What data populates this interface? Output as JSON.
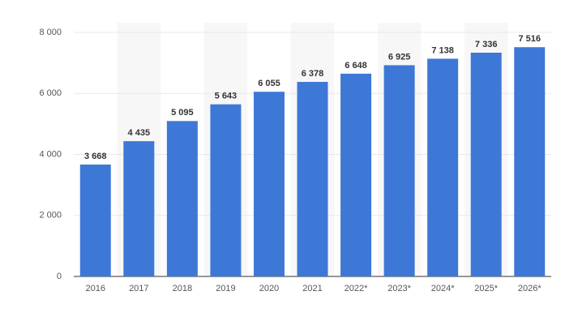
{
  "chart_data": {
    "type": "bar",
    "categories": [
      "2016",
      "2017",
      "2018",
      "2019",
      "2020",
      "2021",
      "2022*",
      "2023*",
      "2024*",
      "2025*",
      "2026*"
    ],
    "values": [
      3668,
      4435,
      5095,
      5643,
      6055,
      6378,
      6648,
      6925,
      7138,
      7336,
      7516
    ],
    "value_labels": [
      "3 668",
      "4 435",
      "5 095",
      "5 643",
      "6 055",
      "6 378",
      "6 648",
      "6 925",
      "7 138",
      "7 336",
      "7 516"
    ],
    "color": "#3e78d7",
    "ylim": [
      0,
      8000
    ],
    "yticks": [
      0,
      {
        "value": 2000,
        "label": "2 000"
      },
      {
        "value": 4000,
        "label": "4 000"
      },
      {
        "value": 6000,
        "label": "6 000"
      },
      {
        "value": 8000,
        "label": "8 000"
      }
    ],
    "grid": true
  }
}
